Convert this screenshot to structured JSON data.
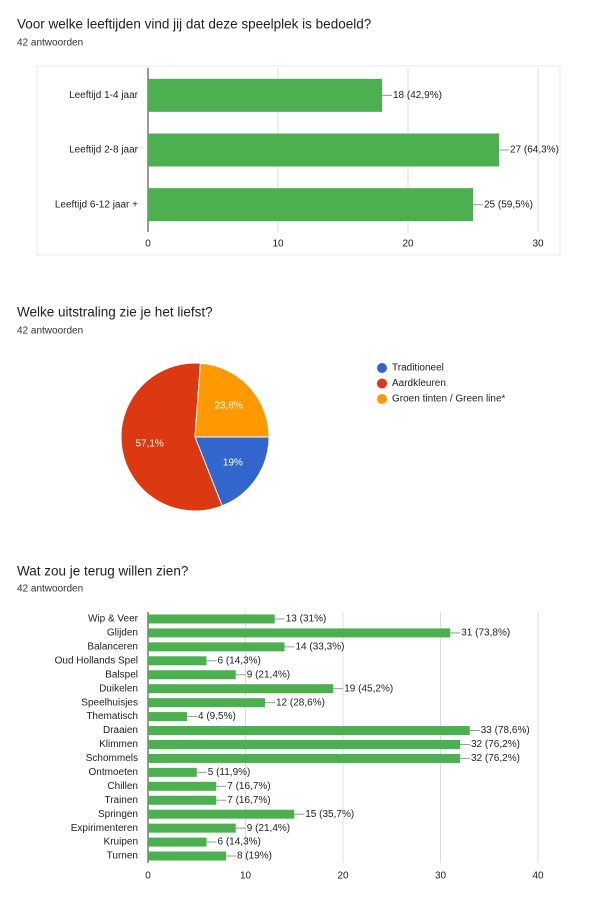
{
  "chart_data": [
    {
      "type": "bar",
      "horizontal": true,
      "title": "Voor welke leeftijden vind jij dat deze speelplek is bedoeld?",
      "subtitle": "42 antwoorden",
      "categories": [
        "Leeftijd 1-4 jaar",
        "Leeftijd 2-8 jaar",
        "Leeftijd 6-12 jaar +"
      ],
      "values": [
        18,
        27,
        25
      ],
      "value_labels": [
        "18 (42,9%)",
        "27 (64,3%)",
        "25 (59,5%)"
      ],
      "color": "#4caf50",
      "xlim": [
        0,
        30
      ],
      "xticks": [
        0,
        10,
        20,
        30
      ],
      "grid": true
    },
    {
      "type": "pie",
      "title": "Welke uitstraling zie je het liefst?",
      "subtitle": "42 antwoorden",
      "categories": [
        "Traditioneel",
        "Aardkleuren",
        "Groen tinten / Green line*"
      ],
      "values": [
        19,
        57.1,
        23.8
      ],
      "value_labels": [
        "19%",
        "57,1%",
        "23,8%"
      ],
      "colors": [
        "#3366cc",
        "#dc3912",
        "#ff9900"
      ],
      "legend": "right"
    },
    {
      "type": "bar",
      "horizontal": true,
      "title": "Wat zou je terug willen zien?",
      "subtitle": "42 antwoorden",
      "categories": [
        "Wip & Veer",
        "Glijden",
        "Balanceren",
        "Oud Hollands Spel",
        "Balspel",
        "Duikelen",
        "Speelhuisjes",
        "Thematisch",
        "Draaien",
        "Klimmen",
        "Schommels",
        "Ontmoeten",
        "Chillen",
        "Trainen",
        "Springen",
        "Expirimenteren",
        "Kruipen",
        "Turnen"
      ],
      "values": [
        13,
        31,
        14,
        6,
        9,
        19,
        12,
        4,
        33,
        32,
        32,
        5,
        7,
        7,
        15,
        9,
        6,
        8
      ],
      "value_labels": [
        "13 (31%)",
        "31 (73,8%)",
        "14 (33,3%)",
        "6 (14,3%)",
        "9 (21,4%)",
        "19 (45,2%)",
        "12 (28,6%)",
        "4 (9,5%)",
        "33 (78,6%)",
        "32 (76,2%)",
        "32 (76,2%)",
        "5 (11,9%)",
        "7 (16,7%)",
        "7 (16,7%)",
        "15 (35,7%)",
        "9 (21,4%)",
        "6 (14,3%)",
        "8 (19%)"
      ],
      "color": "#4caf50",
      "xlim": [
        0,
        40
      ],
      "xticks": [
        0,
        10,
        20,
        30,
        40
      ],
      "grid": true
    }
  ]
}
